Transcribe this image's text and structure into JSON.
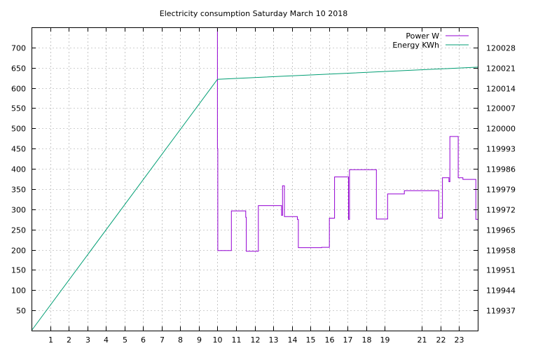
{
  "chart_data": {
    "type": "line",
    "title": "Electricity consumption Saturday March 10 2018",
    "xlabel": "",
    "ylabel": "",
    "y2label": "",
    "xlim": [
      0,
      24
    ],
    "ylim": [
      0,
      750
    ],
    "y2lim": [
      119930,
      120035
    ],
    "x_ticks": [
      1,
      2,
      3,
      4,
      5,
      6,
      7,
      8,
      9,
      10,
      11,
      12,
      13,
      14,
      15,
      16,
      17,
      18,
      19,
      21,
      22,
      23
    ],
    "x_tick_labels": [
      "1",
      "2",
      "3",
      "4",
      "5",
      "6",
      "7",
      "8",
      "9",
      "10",
      "11",
      "12",
      "13",
      "14",
      "15",
      "16",
      "17",
      "18",
      "19",
      "21",
      "22",
      "23"
    ],
    "y_ticks": [
      50,
      100,
      150,
      200,
      250,
      300,
      350,
      400,
      450,
      500,
      550,
      600,
      650,
      700
    ],
    "y_tick_labels": [
      "50",
      "100",
      "150",
      "200",
      "250",
      "300",
      "350",
      "400",
      "450",
      "500",
      "550",
      "600",
      "650",
      "700"
    ],
    "y2_ticks": [
      119937,
      119944,
      119951,
      119958,
      119965,
      119972,
      119979,
      119986,
      119993,
      120000,
      120007,
      120014,
      120021,
      120028
    ],
    "y2_tick_labels": [
      "119937",
      "119944",
      "119951",
      "119958",
      "119965",
      "119972",
      "119979",
      "119986",
      "119993",
      "120000",
      "120007",
      "120014",
      "120021",
      "120028"
    ],
    "grid": true,
    "legend_position": "top-right",
    "series": [
      {
        "name": "Power W",
        "axis": "y",
        "color": "#9400d3",
        "step": true,
        "x": [
          10.0,
          10.0,
          10.02,
          10.02,
          10.75,
          10.75,
          11.5,
          11.52,
          11.55,
          11.55,
          12.2,
          12.2,
          13.45,
          13.45,
          13.5,
          13.5,
          13.6,
          13.6,
          13.7,
          13.7,
          14.3,
          14.35,
          14.35,
          15.6,
          15.6,
          16.0,
          16.02,
          16.02,
          16.3,
          16.3,
          17.05,
          17.05,
          17.1,
          17.1,
          18.5,
          18.55,
          18.55,
          19.15,
          19.15,
          20.05,
          20.05,
          21.9,
          21.9,
          22.1,
          22.1,
          22.45,
          22.45,
          22.5,
          22.5,
          22.95,
          22.95,
          23.2,
          23.2,
          23.85,
          23.9,
          23.9,
          24.0
        ],
        "values": [
          750,
          450,
          450,
          198,
          198,
          296,
          296,
          280,
          230,
          196,
          196,
          309,
          309,
          285,
          285,
          358,
          358,
          282,
          282,
          282,
          275,
          275,
          205,
          205,
          206,
          206,
          220,
          278,
          278,
          380,
          380,
          275,
          275,
          398,
          398,
          370,
          276,
          276,
          338,
          338,
          346,
          346,
          278,
          278,
          378,
          378,
          368,
          368,
          480,
          480,
          378,
          378,
          374,
          374,
          360,
          275,
          275
        ]
      },
      {
        "name": "Energy KWh",
        "axis": "y2",
        "color": "#009e73",
        "step": false,
        "x": [
          0,
          10.0,
          24.0
        ],
        "values": [
          119930.0,
          120017.0,
          120021.2
        ]
      }
    ]
  }
}
